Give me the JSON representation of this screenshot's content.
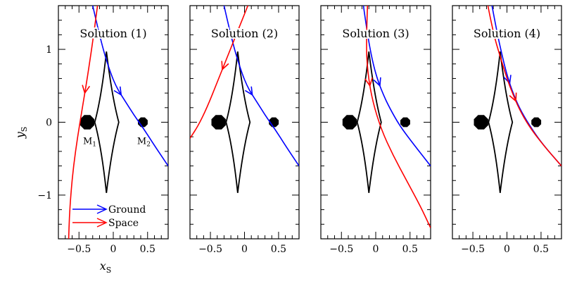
{
  "chart_data": {
    "type": "line",
    "xlabel": "x",
    "xlabel_sub": "S",
    "ylabel": "y",
    "ylabel_sub": "S",
    "xlim": [
      -0.8,
      0.8
    ],
    "ylim": [
      -1.6,
      1.6
    ],
    "x_ticks": [
      -0.5,
      0,
      0.5
    ],
    "x_tick_labels": [
      "−0.5",
      "0",
      "0.5"
    ],
    "y_ticks": [
      -1,
      0,
      1
    ],
    "y_tick_labels": [
      "−1",
      "0",
      "1"
    ],
    "lenses": [
      {
        "name": "M",
        "sub": "1",
        "x": -0.38,
        "y": 0.0
      },
      {
        "name": "M",
        "sub": "2",
        "x": 0.43,
        "y": 0.0
      }
    ],
    "caustic": {
      "upper_cusp": [
        -0.1,
        0.97
      ],
      "lower_cusp": [
        -0.1,
        -0.97
      ],
      "left_cusp": [
        -0.27,
        0.0
      ],
      "right_cusp": [
        0.08,
        0.0
      ]
    },
    "legend": {
      "placement": "bottom-left",
      "entries": [
        {
          "label": "Ground",
          "color": "#0000ff"
        },
        {
          "label": "Space",
          "color": "#ff0000"
        }
      ]
    },
    "panels": [
      {
        "title": "Solution (1)",
        "series": [
          {
            "name": "Ground",
            "color": "#0000ff",
            "x": [
              -0.3,
              -0.18,
              -0.05,
              0.05,
              0.18,
              0.3,
              0.45,
              0.6,
              0.8
            ],
            "y": [
              1.6,
              1.1,
              0.7,
              0.47,
              0.28,
              0.1,
              -0.1,
              -0.32,
              -0.6
            ],
            "arrow_at": 0.48
          },
          {
            "name": "Space",
            "color": "#ff0000",
            "x": [
              -0.23,
              -0.3,
              -0.38,
              -0.45,
              -0.52,
              -0.58,
              -0.62,
              -0.64,
              -0.65
            ],
            "y": [
              1.6,
              1.1,
              0.6,
              0.2,
              -0.2,
              -0.6,
              -1.0,
              -1.3,
              -1.6
            ],
            "arrow_at": 0.25
          }
        ]
      },
      {
        "title": "Solution (2)",
        "series": [
          {
            "name": "Ground",
            "color": "#0000ff",
            "x": [
              -0.3,
              -0.18,
              -0.05,
              0.05,
              0.18,
              0.3,
              0.45,
              0.6,
              0.8
            ],
            "y": [
              1.6,
              1.1,
              0.7,
              0.47,
              0.28,
              0.1,
              -0.1,
              -0.32,
              -0.6
            ],
            "arrow_at": 0.48
          },
          {
            "name": "Space",
            "color": "#ff0000",
            "x": [
              0.05,
              -0.1,
              -0.25,
              -0.4,
              -0.55,
              -0.68,
              -0.8
            ],
            "y": [
              1.6,
              1.25,
              0.9,
              0.55,
              0.2,
              -0.05,
              -0.22
            ],
            "arrow_at": 0.4
          }
        ]
      },
      {
        "title": "Solution (3)",
        "series": [
          {
            "name": "Ground",
            "color": "#0000ff",
            "x": [
              -0.18,
              -0.12,
              -0.05,
              0.02,
              0.1,
              0.2,
              0.35,
              0.55,
              0.8
            ],
            "y": [
              1.6,
              1.2,
              0.85,
              0.6,
              0.4,
              0.2,
              -0.05,
              -0.3,
              -0.6
            ],
            "arrow_at": 0.42
          },
          {
            "name": "Space",
            "color": "#ff0000",
            "x": [
              -0.12,
              -0.14,
              -0.12,
              -0.05,
              0.08,
              0.25,
              0.45,
              0.65,
              0.8
            ],
            "y": [
              1.6,
              1.1,
              0.7,
              0.3,
              -0.1,
              -0.45,
              -0.8,
              -1.15,
              -1.45
            ],
            "arrow_at": 0.3
          }
        ]
      },
      {
        "title": "Solution (4)",
        "series": [
          {
            "name": "Ground",
            "color": "#0000ff",
            "x": [
              -0.22,
              -0.15,
              -0.08,
              0.0,
              0.08,
              0.18,
              0.32,
              0.52,
              0.8
            ],
            "y": [
              1.6,
              1.25,
              0.95,
              0.65,
              0.42,
              0.2,
              -0.03,
              -0.3,
              -0.6
            ],
            "arrow_at": 0.45
          },
          {
            "name": "Space",
            "color": "#ff0000",
            "x": [
              -0.28,
              -0.2,
              -0.1,
              0.0,
              0.08,
              0.18,
              0.32,
              0.52,
              0.8
            ],
            "y": [
              1.6,
              1.22,
              0.9,
              0.6,
              0.4,
              0.18,
              -0.05,
              -0.3,
              -0.6
            ],
            "arrow_at": 0.5
          }
        ]
      }
    ]
  }
}
